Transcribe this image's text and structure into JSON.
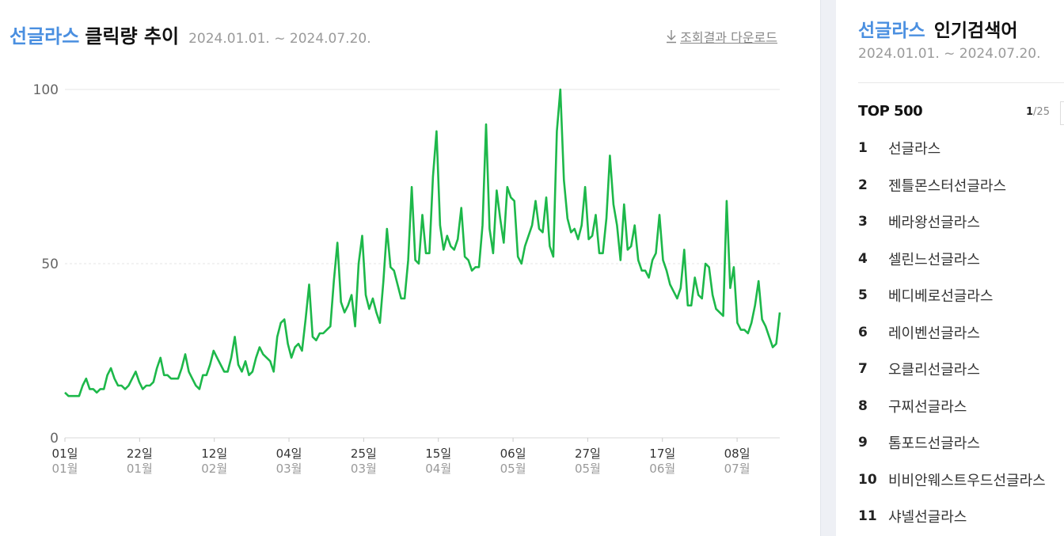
{
  "header": {
    "keyword": "선글라스",
    "title": "클릭량 추이",
    "period": "2024.01.01. ~ 2024.07.20.",
    "download_label": "조회결과 다운로드"
  },
  "colors": {
    "accent": "#4a8fe0",
    "line": "#1db84a"
  },
  "chart_data": {
    "type": "line",
    "title": "",
    "xlabel": "",
    "ylabel": "",
    "ylim": [
      0,
      100
    ],
    "yticks": [
      0,
      50,
      100
    ],
    "grid": "horizontal",
    "legend": "none",
    "x_start": "2024-01-01",
    "x_end": "2024-07-20",
    "x_ticks": [
      {
        "date": "2024-01-01",
        "day": "01일",
        "month": "01월"
      },
      {
        "date": "2024-01-22",
        "day": "22일",
        "month": "01월"
      },
      {
        "date": "2024-02-12",
        "day": "12일",
        "month": "02월"
      },
      {
        "date": "2024-03-04",
        "day": "04일",
        "month": "03월"
      },
      {
        "date": "2024-03-25",
        "day": "25일",
        "month": "03월"
      },
      {
        "date": "2024-04-15",
        "day": "15일",
        "month": "04월"
      },
      {
        "date": "2024-05-06",
        "day": "06일",
        "month": "05월"
      },
      {
        "date": "2024-05-27",
        "day": "27일",
        "month": "05월"
      },
      {
        "date": "2024-06-17",
        "day": "17일",
        "month": "06월"
      },
      {
        "date": "2024-07-08",
        "day": "08일",
        "month": "07월"
      }
    ],
    "series": [
      {
        "values": [
          13,
          12,
          12,
          12,
          12,
          15,
          17,
          14,
          14,
          13,
          14,
          14,
          18,
          20,
          17,
          15,
          15,
          14,
          15,
          17,
          19,
          16,
          14,
          15,
          15,
          16,
          20,
          23,
          18,
          18,
          17,
          17,
          17,
          20,
          24,
          19,
          17,
          15,
          14,
          18,
          18,
          21,
          25,
          23,
          21,
          19,
          19,
          23,
          29,
          21,
          19,
          22,
          18,
          19,
          23,
          26,
          24,
          23,
          22,
          19,
          29,
          33,
          34,
          27,
          23,
          26,
          27,
          25,
          34,
          44,
          29,
          28,
          30,
          30,
          31,
          32,
          45,
          56,
          39,
          36,
          38,
          41,
          32,
          50,
          58,
          41,
          37,
          40,
          36,
          33,
          45,
          60,
          49,
          48,
          44,
          40,
          40,
          51,
          72,
          51,
          50,
          64,
          53,
          53,
          75,
          88,
          61,
          54,
          58,
          55,
          54,
          57,
          66,
          52,
          51,
          48,
          49,
          49,
          61,
          90,
          60,
          53,
          71,
          63,
          56,
          72,
          69,
          68,
          52,
          50,
          55,
          58,
          61,
          68,
          60,
          59,
          69,
          55,
          52,
          88,
          100,
          74,
          63,
          59,
          60,
          57,
          61,
          72,
          57,
          58,
          64,
          53,
          53,
          63,
          81,
          67,
          61,
          51,
          67,
          54,
          55,
          61,
          51,
          48,
          48,
          46,
          51,
          53,
          64,
          51,
          48,
          44,
          42,
          40,
          43,
          54,
          38,
          38,
          46,
          41,
          40,
          50,
          49,
          41,
          37,
          36,
          35,
          68,
          43,
          49,
          33,
          31,
          31,
          30,
          33,
          38,
          45,
          34,
          32,
          29,
          26,
          27,
          36
        ]
      }
    ]
  },
  "sidebar": {
    "keyword": "선글라스",
    "title": "인기검색어",
    "period": "2024.01.01. ~ 2024.07.20.",
    "top_label": "TOP 500",
    "page_current": "1",
    "page_total": "/25",
    "items": [
      {
        "rank": "1",
        "text": "선글라스"
      },
      {
        "rank": "2",
        "text": "젠틀몬스터선글라스"
      },
      {
        "rank": "3",
        "text": "베라왕선글라스"
      },
      {
        "rank": "4",
        "text": "셀린느선글라스"
      },
      {
        "rank": "5",
        "text": "베디베로선글라스"
      },
      {
        "rank": "6",
        "text": "레이벤선글라스"
      },
      {
        "rank": "7",
        "text": "오클리선글라스"
      },
      {
        "rank": "8",
        "text": "구찌선글라스"
      },
      {
        "rank": "9",
        "text": "톰포드선글라스"
      },
      {
        "rank": "10",
        "text": "비비안웨스트우드선글라스"
      },
      {
        "rank": "11",
        "text": "샤넬선글라스"
      }
    ]
  }
}
